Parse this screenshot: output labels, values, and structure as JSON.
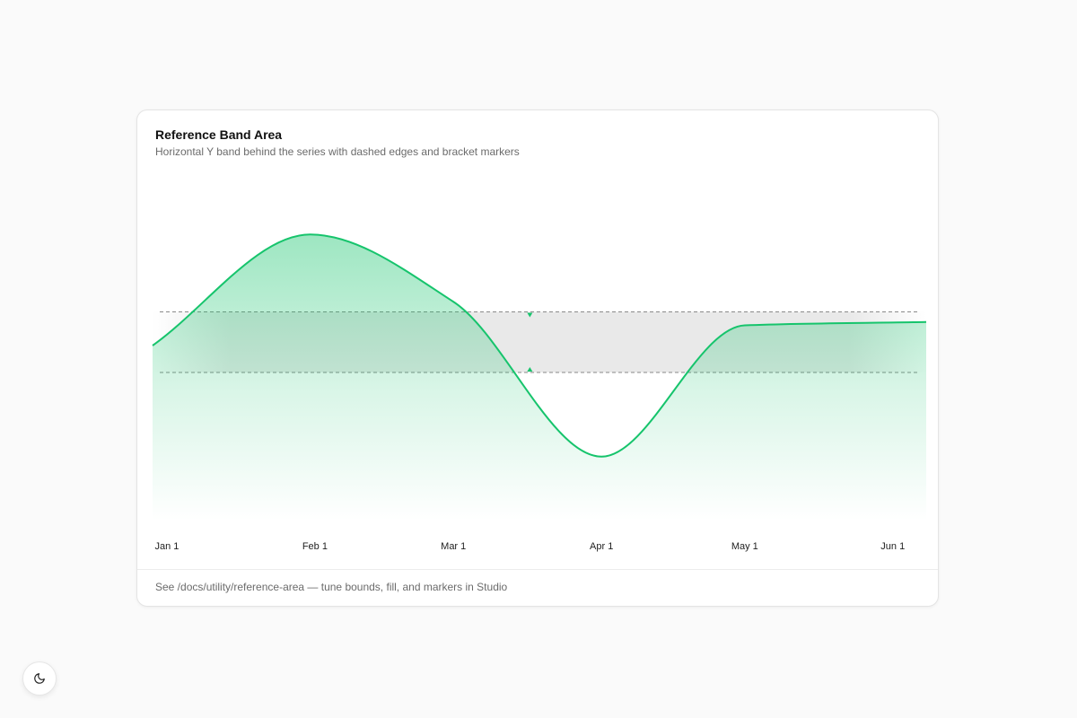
{
  "card": {
    "title": "Reference Band Area",
    "subtitle": "Horizontal Y band behind the series with dashed edges and bracket markers",
    "footer": "See /docs/utility/reference-area — tune bounds, fill, and markers in Studio"
  },
  "theme_toggle": {
    "icon": "moon-icon"
  },
  "colors": {
    "series": "#16c46c",
    "band_fill": "#e9e9e9",
    "band_edge": "#8a8a8a"
  },
  "chart_data": {
    "type": "area",
    "title": "Reference Band Area",
    "subtitle": "Horizontal Y band behind the series with dashed edges and bracket markers",
    "x_tick_labels": [
      "Jan 1",
      "Feb 1",
      "Mar 1",
      "Apr 1",
      "May 1",
      "Jun 1"
    ],
    "x_tick_dates": [
      "2024-01-01",
      "2024-02-01",
      "2024-03-01",
      "2024-04-01",
      "2024-05-01",
      "2024-06-01"
    ],
    "x_range": [
      "2023-12-29",
      "2024-06-08"
    ],
    "ylim": [
      0,
      100
    ],
    "grid": false,
    "legend": "none",
    "series": [
      {
        "x": [
          "2023-12-29",
          "2024-01-31",
          "2024-03-01",
          "2024-04-01",
          "2024-05-01",
          "2024-06-08"
        ],
        "values": [
          52,
          85,
          65,
          19,
          58,
          59
        ],
        "smooth": true
      }
    ],
    "reference_band": {
      "y1": 44,
      "y2": 62,
      "x_marker": "2024-03-17",
      "edge_style": "dashed",
      "markers": "bracket"
    }
  }
}
